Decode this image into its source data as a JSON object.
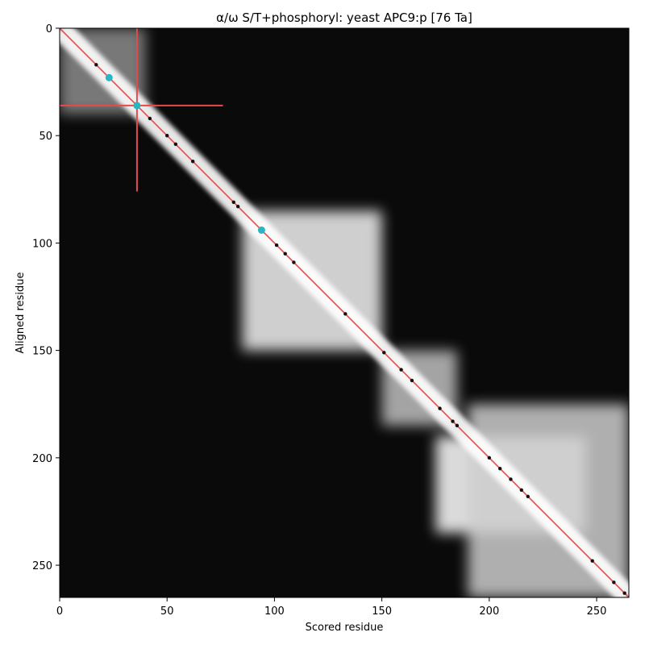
{
  "chart_data": {
    "type": "heatmap",
    "title": "α/ω S/T+phosphoryl: yeast APC9:p [76 Ta]",
    "xlabel": "Scored residue",
    "ylabel": "Aligned residue",
    "xlim": [
      0,
      265
    ],
    "ylim": [
      265,
      0
    ],
    "xticks": [
      0,
      50,
      100,
      150,
      200,
      250
    ],
    "yticks": [
      0,
      50,
      100,
      150,
      200,
      250
    ],
    "colormap": "grayscale",
    "background_color": "#0a0a0a",
    "high_color": "#ffffff",
    "diagonal": {
      "from": [
        0,
        0
      ],
      "to": [
        265,
        265
      ],
      "color": "#e84a4a"
    },
    "crosshair": {
      "x": 36,
      "y": 36,
      "h_range": [
        0,
        76
      ],
      "v_range": [
        0,
        76
      ],
      "color": "#e84a4a"
    },
    "bright_blocks": [
      {
        "x": [
          0,
          40
        ],
        "y": [
          0,
          40
        ],
        "intensity": 0.55
      },
      {
        "x": [
          85,
          150
        ],
        "y": [
          85,
          150
        ],
        "intensity": 0.95
      },
      {
        "x": [
          150,
          185
        ],
        "y": [
          150,
          185
        ],
        "intensity": 0.75
      },
      {
        "x": [
          175,
          245
        ],
        "y": [
          190,
          235
        ],
        "intensity": 1.0
      },
      {
        "x": [
          190,
          265
        ],
        "y": [
          175,
          265
        ],
        "intensity": 0.8
      }
    ],
    "highlight_points": {
      "color": "#2ab5c2",
      "points": [
        [
          23,
          23
        ],
        [
          36,
          36
        ],
        [
          94,
          94
        ]
      ]
    },
    "marker_points": {
      "color": "#111111",
      "points": [
        [
          17,
          17
        ],
        [
          42,
          42
        ],
        [
          50,
          50
        ],
        [
          54,
          54
        ],
        [
          62,
          62
        ],
        [
          81,
          81
        ],
        [
          83,
          83
        ],
        [
          101,
          101
        ],
        [
          105,
          105
        ],
        [
          109,
          109
        ],
        [
          133,
          133
        ],
        [
          151,
          151
        ],
        [
          159,
          159
        ],
        [
          164,
          164
        ],
        [
          177,
          177
        ],
        [
          183,
          183
        ],
        [
          185,
          185
        ],
        [
          200,
          200
        ],
        [
          205,
          205
        ],
        [
          210,
          210
        ],
        [
          215,
          215
        ],
        [
          218,
          218
        ],
        [
          248,
          248
        ],
        [
          258,
          258
        ],
        [
          263,
          263
        ]
      ]
    }
  }
}
